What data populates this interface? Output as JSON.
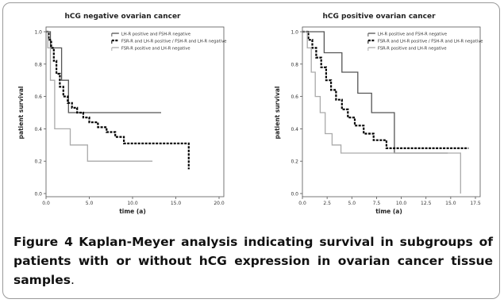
{
  "caption": {
    "label": "Figure 4",
    "text": "Kaplan-Meyer analysis indicating survival in subgroups of patients with or without hCG expression in ovarian cancer tissue samples",
    "end": "."
  },
  "chart_data": [
    {
      "type": "line",
      "title": "hCG negative ovarian cancer",
      "xlabel": "time (a)",
      "ylabel": "patient survival",
      "xlim": [
        0,
        20
      ],
      "ylim": [
        0,
        1
      ],
      "xticks": [
        "0.0",
        "5.0",
        "10.0",
        "15.0",
        "20.0"
      ],
      "yticks": [
        "0.0",
        "0.2",
        "0.4",
        "0.6",
        "0.8",
        "1.0"
      ],
      "legend_position": "top-center",
      "series": [
        {
          "name": "LH-R positive and FSH-R negative",
          "style": "solid",
          "color": "#555555",
          "points": [
            [
              0,
              1.0
            ],
            [
              0.5,
              1.0
            ],
            [
              0.5,
              0.9
            ],
            [
              1.8,
              0.9
            ],
            [
              1.8,
              0.7
            ],
            [
              2.6,
              0.7
            ],
            [
              2.6,
              0.5
            ],
            [
              13.3,
              0.5
            ]
          ]
        },
        {
          "name": "FSR-R and LH-R positive / FSH-R and LH-R negative",
          "style": "dashed",
          "color": "#000000",
          "points": [
            [
              0,
              1.0
            ],
            [
              0.3,
              1.0
            ],
            [
              0.3,
              0.95
            ],
            [
              0.6,
              0.95
            ],
            [
              0.6,
              0.9
            ],
            [
              0.9,
              0.9
            ],
            [
              0.9,
              0.82
            ],
            [
              1.2,
              0.82
            ],
            [
              1.2,
              0.74
            ],
            [
              1.6,
              0.74
            ],
            [
              1.6,
              0.66
            ],
            [
              2.0,
              0.66
            ],
            [
              2.0,
              0.6
            ],
            [
              2.5,
              0.6
            ],
            [
              2.5,
              0.56
            ],
            [
              3.0,
              0.56
            ],
            [
              3.0,
              0.53
            ],
            [
              3.6,
              0.53
            ],
            [
              3.6,
              0.5
            ],
            [
              4.3,
              0.5
            ],
            [
              4.3,
              0.47
            ],
            [
              5.0,
              0.47
            ],
            [
              5.0,
              0.44
            ],
            [
              6.0,
              0.44
            ],
            [
              6.0,
              0.41
            ],
            [
              7.0,
              0.41
            ],
            [
              7.0,
              0.38
            ],
            [
              8.0,
              0.38
            ],
            [
              8.0,
              0.35
            ],
            [
              9.0,
              0.35
            ],
            [
              9.0,
              0.31
            ],
            [
              16.5,
              0.31
            ],
            [
              16.5,
              0.15
            ]
          ]
        },
        {
          "name": "FSR-R positive and LH-R negative",
          "style": "solid",
          "color": "#aaaaaa",
          "points": [
            [
              0,
              1.0
            ],
            [
              0.2,
              1.0
            ],
            [
              0.2,
              0.9
            ],
            [
              0.5,
              0.9
            ],
            [
              0.5,
              0.7
            ],
            [
              1.0,
              0.7
            ],
            [
              1.0,
              0.4
            ],
            [
              2.8,
              0.4
            ],
            [
              2.8,
              0.3
            ],
            [
              4.8,
              0.3
            ],
            [
              4.8,
              0.2
            ],
            [
              12.3,
              0.2
            ]
          ]
        }
      ]
    },
    {
      "type": "line",
      "title": "hCG positive ovarian cancer",
      "xlabel": "time (a)",
      "ylabel": "patient survival",
      "xlim": [
        0,
        17.5
      ],
      "ylim": [
        0,
        1
      ],
      "xticks": [
        "0.0",
        "2.5",
        "5.0",
        "7.5",
        "10.0",
        "12.5",
        "15.0",
        "17.5"
      ],
      "yticks": [
        "0.0",
        "0.2",
        "0.4",
        "0.6",
        "0.8",
        "1.0"
      ],
      "legend_position": "top-center",
      "series": [
        {
          "name": "LH-R positive and FSH-R negative",
          "style": "solid",
          "color": "#555555",
          "points": [
            [
              0,
              1.0
            ],
            [
              2.2,
              1.0
            ],
            [
              2.2,
              0.87
            ],
            [
              4.0,
              0.87
            ],
            [
              4.0,
              0.75
            ],
            [
              5.6,
              0.75
            ],
            [
              5.6,
              0.62
            ],
            [
              7.0,
              0.62
            ],
            [
              7.0,
              0.5
            ],
            [
              9.3,
              0.5
            ],
            [
              9.3,
              0.25
            ],
            [
              14.7,
              0.25
            ]
          ]
        },
        {
          "name": "FSR-R and LH-R positive / FSH-R and LH-R negative",
          "style": "dashed",
          "color": "#000000",
          "points": [
            [
              0,
              1.0
            ],
            [
              0.6,
              1.0
            ],
            [
              0.6,
              0.95
            ],
            [
              1.0,
              0.95
            ],
            [
              1.0,
              0.9
            ],
            [
              1.4,
              0.9
            ],
            [
              1.4,
              0.84
            ],
            [
              1.9,
              0.84
            ],
            [
              1.9,
              0.78
            ],
            [
              2.4,
              0.78
            ],
            [
              2.4,
              0.7
            ],
            [
              2.9,
              0.7
            ],
            [
              2.9,
              0.64
            ],
            [
              3.4,
              0.64
            ],
            [
              3.4,
              0.58
            ],
            [
              4.0,
              0.58
            ],
            [
              4.0,
              0.52
            ],
            [
              4.6,
              0.52
            ],
            [
              4.6,
              0.47
            ],
            [
              5.3,
              0.47
            ],
            [
              5.3,
              0.42
            ],
            [
              6.2,
              0.42
            ],
            [
              6.2,
              0.37
            ],
            [
              7.2,
              0.37
            ],
            [
              7.2,
              0.33
            ],
            [
              8.5,
              0.33
            ],
            [
              8.5,
              0.28
            ],
            [
              16.8,
              0.28
            ]
          ]
        },
        {
          "name": "FSR-R positive and LH-R negative",
          "style": "solid",
          "color": "#aaaaaa",
          "points": [
            [
              0,
              1.0
            ],
            [
              0.5,
              1.0
            ],
            [
              0.5,
              0.9
            ],
            [
              0.9,
              0.9
            ],
            [
              0.9,
              0.75
            ],
            [
              1.3,
              0.75
            ],
            [
              1.3,
              0.6
            ],
            [
              1.8,
              0.6
            ],
            [
              1.8,
              0.5
            ],
            [
              2.3,
              0.5
            ],
            [
              2.3,
              0.37
            ],
            [
              3.0,
              0.37
            ],
            [
              3.0,
              0.3
            ],
            [
              3.9,
              0.3
            ],
            [
              3.9,
              0.25
            ],
            [
              16.0,
              0.25
            ],
            [
              16.0,
              0.0
            ]
          ]
        }
      ]
    }
  ],
  "colors": {
    "frame": "#9a9a9a",
    "axis": "#555555"
  }
}
